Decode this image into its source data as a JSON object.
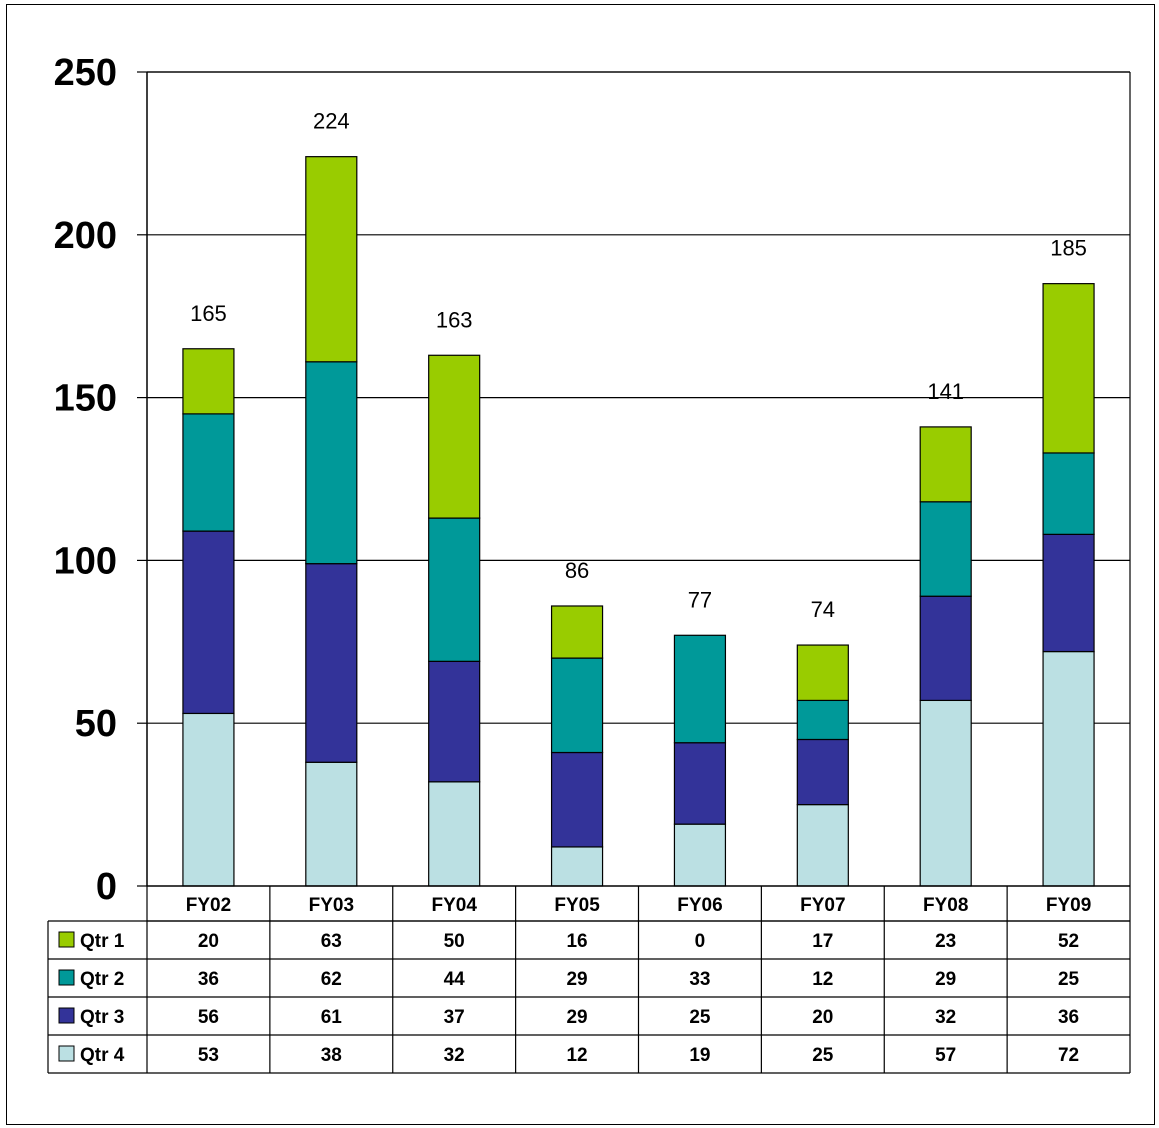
{
  "chart_data": {
    "type": "bar",
    "stacked": true,
    "categories": [
      "FY02",
      "FY03",
      "FY04",
      "FY05",
      "FY06",
      "FY07",
      "FY08",
      "FY09"
    ],
    "series": [
      {
        "name": "Qtr 1",
        "color": "#99CC00",
        "values": [
          20,
          63,
          50,
          16,
          0,
          17,
          23,
          52
        ]
      },
      {
        "name": "Qtr 2",
        "color": "#009999",
        "values": [
          36,
          62,
          44,
          29,
          33,
          12,
          29,
          25
        ]
      },
      {
        "name": "Qtr 3",
        "color": "#333399",
        "values": [
          56,
          61,
          37,
          29,
          25,
          20,
          32,
          36
        ]
      },
      {
        "name": "Qtr 4",
        "color": "#BBE0E3",
        "values": [
          53,
          38,
          32,
          12,
          19,
          25,
          57,
          72
        ]
      }
    ],
    "totals": [
      165,
      224,
      163,
      86,
      77,
      74,
      141,
      185
    ],
    "ylim": [
      0,
      250
    ],
    "yticks": [
      0,
      50,
      100,
      150,
      200,
      250
    ],
    "title": "",
    "xlabel": "",
    "ylabel": "",
    "grid": true,
    "legend": "data-table-left"
  }
}
